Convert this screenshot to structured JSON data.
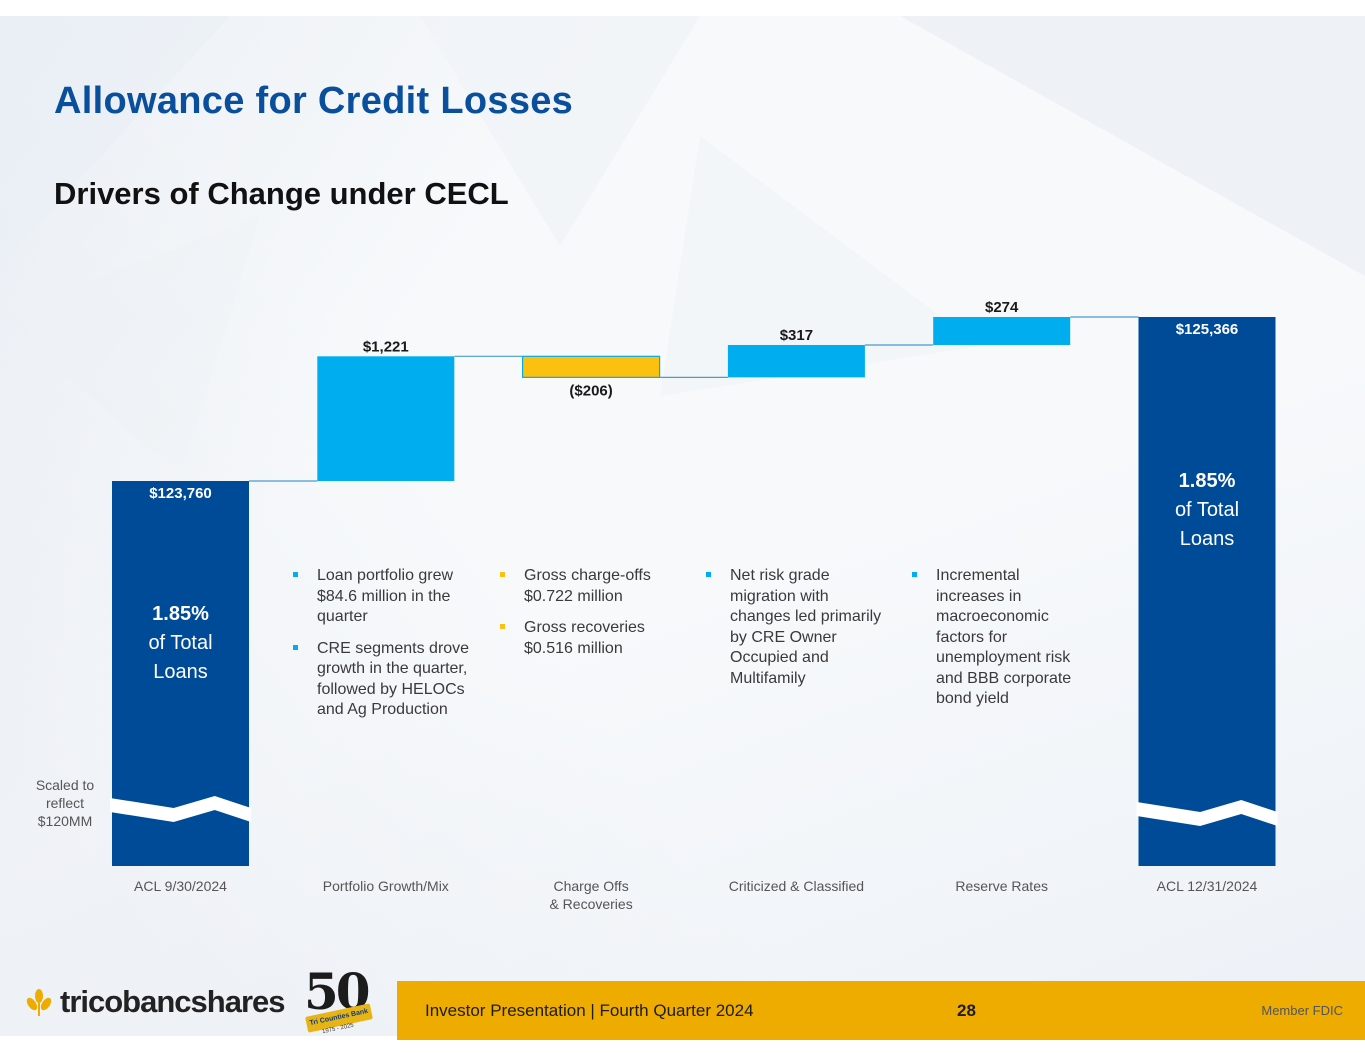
{
  "page": {
    "title": "Allowance for Credit Losses",
    "subtitle": "Drivers of Change under CECL"
  },
  "chart_data": {
    "type": "waterfall",
    "units": "$ thousands",
    "categories": [
      "ACL 9/30/2024",
      "Portfolio Growth/Mix",
      "Charge Offs\n& Recoveries",
      "Criticized & Classified",
      "Reserve Rates",
      "ACL 12/31/2024"
    ],
    "bars": [
      {
        "category": "ACL 9/30/2024",
        "kind": "total",
        "value": 123760,
        "label": "$123,760",
        "inner_pct": "1.85%",
        "inner_line1": "of Total",
        "inner_line2": "Loans"
      },
      {
        "category": "Portfolio Growth/Mix",
        "kind": "increase",
        "value": 1221,
        "label": "$1,221"
      },
      {
        "category": "Charge Offs & Recoveries",
        "kind": "decrease",
        "value": -206,
        "label": "($206)"
      },
      {
        "category": "Criticized & Classified",
        "kind": "increase",
        "value": 317,
        "label": "$317"
      },
      {
        "category": "Reserve Rates",
        "kind": "increase",
        "value": 274,
        "label": "$274"
      },
      {
        "category": "ACL 12/31/2024",
        "kind": "total",
        "value": 125366,
        "label": "$125,366",
        "inner_pct": "1.85%",
        "inner_line1": "of Total",
        "inner_line2": "Loans"
      }
    ],
    "axis_break": {
      "scaled_floor": 120000,
      "note": "Scaled to reflect $120MM"
    },
    "visible_range": [
      123500,
      125450
    ],
    "colors": {
      "total": "#004b97",
      "increase": "#00aeef",
      "decrease": "#fcc10e",
      "connector": "#4a9bd0",
      "label_dark": "#1a1a1a",
      "label_white": "#ffffff"
    }
  },
  "notes": {
    "growth": [
      "Loan portfolio grew $84.6 million in the quarter",
      "CRE segments drove growth in the quarter, followed by HELOCs and Ag Production"
    ],
    "chargeoffs": [
      "Gross charge-offs $0.722 million",
      "Gross recoveries $0.516 million"
    ],
    "criticized": [
      "Net risk grade migration with changes led primarily by CRE Owner Occupied and  Multifamily"
    ],
    "reserve": [
      "Incremental increases in macroeconomic factors for unemployment risk and BBB corporate bond yield"
    ]
  },
  "scaled_note": "Scaled to reflect $120MM",
  "footer": {
    "presentation": "Investor Presentation  |  Fourth Quarter 2024",
    "page_number": "28",
    "member": "Member FDIC",
    "logo_text": "tricobancshares",
    "badge_number": "50",
    "badge_ribbon": "Tri Counties Bank",
    "badge_years": "1975 - 2025"
  }
}
